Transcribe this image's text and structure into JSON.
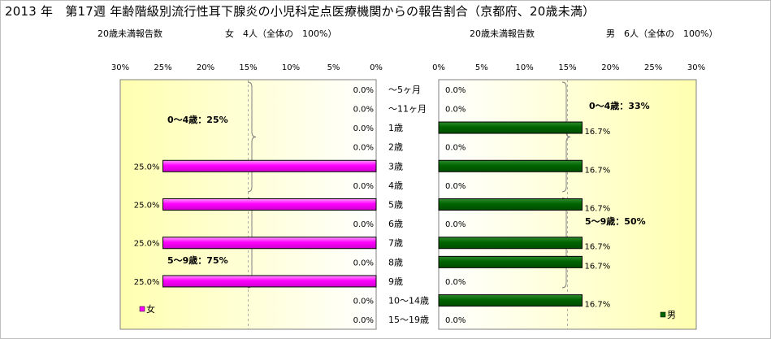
{
  "title": "2013 年　第17週 年齢階級別流行性耳下腺炎の小児科定点医療機関からの報告割合（京都府、20歳未満）",
  "left_subtitle": "20歳未満報告数　　　　　　　女　4人（全体の　100%）",
  "right_subtitle": "20歳未満報告数　　　　　　　　男　6人（全体の　100%）",
  "colors": {
    "female": "#ff00ff",
    "male": "#006400",
    "panel_top": "#ffffe6",
    "panel_bottom": "#ffff99"
  },
  "chart_data": [
    {
      "type": "bar",
      "orientation": "horizontal-reversed",
      "categories": [
        "～5ヶ月",
        "～11ヶ月",
        "1歳",
        "2歳",
        "3歳",
        "4歳",
        "5歳",
        "6歳",
        "7歳",
        "8歳",
        "9歳",
        "10～14歳",
        "15～19歳"
      ],
      "series": [
        {
          "name": "女",
          "values": [
            0,
            0,
            0,
            0,
            25,
            0,
            25,
            0,
            25,
            0,
            25,
            0,
            0
          ]
        }
      ],
      "data_labels": [
        "0.0%",
        "0.0%",
        "0.0%",
        "0.0%",
        "25.0%",
        "0.0%",
        "25.0%",
        "0.0%",
        "25.0%",
        "0.0%",
        "25.0%",
        "0.0%",
        "0.0%"
      ],
      "xlim": [
        0,
        30
      ],
      "x_ticks": [
        "30%",
        "25%",
        "20%",
        "15%",
        "10%",
        "5%",
        "0%"
      ],
      "annotations": [
        "0～4歳：25%",
        "5～9歳：75%"
      ],
      "legend": "bottom-left"
    },
    {
      "type": "bar",
      "orientation": "horizontal",
      "categories": [
        "～5ヶ月",
        "～11ヶ月",
        "1歳",
        "2歳",
        "3歳",
        "4歳",
        "5歳",
        "6歳",
        "7歳",
        "8歳",
        "9歳",
        "10～14歳",
        "15～19歳"
      ],
      "series": [
        {
          "name": "男",
          "values": [
            0,
            0,
            16.7,
            0,
            16.7,
            0,
            16.7,
            0,
            16.7,
            16.7,
            0,
            16.7,
            0
          ]
        }
      ],
      "data_labels": [
        "0.0%",
        "0.0%",
        "16.7%",
        "0.0%",
        "16.7%",
        "0.0%",
        "16.7%",
        "0.0%",
        "16.7%",
        "16.7%",
        "0.0%",
        "16.7%",
        "0.0%"
      ],
      "xlim": [
        0,
        30
      ],
      "x_ticks": [
        "0%",
        "5%",
        "10%",
        "15%",
        "20%",
        "25%",
        "30%"
      ],
      "annotations": [
        "0～4歳：33%",
        "5～9歳：50%"
      ],
      "legend": "bottom-right"
    }
  ]
}
